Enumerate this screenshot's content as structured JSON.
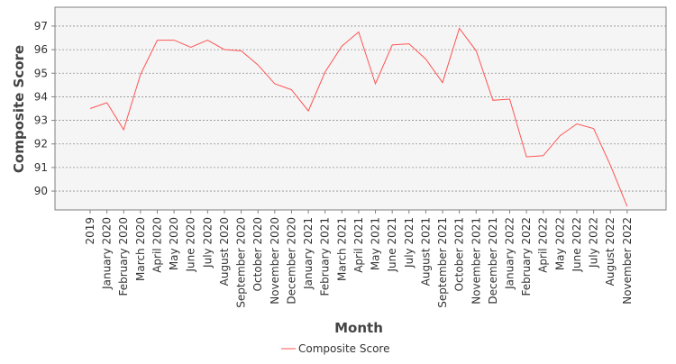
{
  "chart_data": {
    "type": "line",
    "title": "",
    "xlabel": "Month",
    "ylabel": "Composite Score",
    "ylim": [
      89.2,
      97.8
    ],
    "yticks": [
      90,
      91,
      92,
      93,
      94,
      95,
      96,
      97
    ],
    "grid": true,
    "legend_position": "bottom-center",
    "categories": [
      "2019",
      "January 2020",
      "February 2020",
      "March 2020",
      "April 2020",
      "May 2020",
      "June 2020",
      "July 2020",
      "August 2020",
      "September 2020",
      "October 2020",
      "November 2020",
      "December 2020",
      "January 2021",
      "February 2021",
      "March 2021",
      "April 2021",
      "May 2021",
      "June 2021",
      "July 2021",
      "August 2021",
      "September 2021",
      "October 2021",
      "November 2021",
      "December 2021",
      "January 2022",
      "February 2022",
      "April 2022",
      "May 2022",
      "June 2022",
      "July 2022",
      "August 2022",
      "November 2022"
    ],
    "series": [
      {
        "name": "Composite Score",
        "color": "#ff5555",
        "values": [
          93.5,
          93.75,
          92.6,
          94.95,
          96.4,
          96.4,
          96.1,
          96.4,
          96.0,
          95.95,
          95.35,
          94.55,
          94.3,
          93.4,
          95.05,
          96.15,
          96.75,
          94.55,
          96.2,
          96.25,
          95.6,
          94.6,
          96.9,
          95.95,
          93.85,
          93.9,
          91.45,
          91.5,
          92.35,
          92.85,
          92.65,
          91.1,
          89.35
        ]
      }
    ]
  },
  "colors": {
    "plot_background": "#f5f5f5",
    "grid": "#8f8f8f",
    "axis": "#808080",
    "text": "#333333",
    "label": "#444444"
  }
}
